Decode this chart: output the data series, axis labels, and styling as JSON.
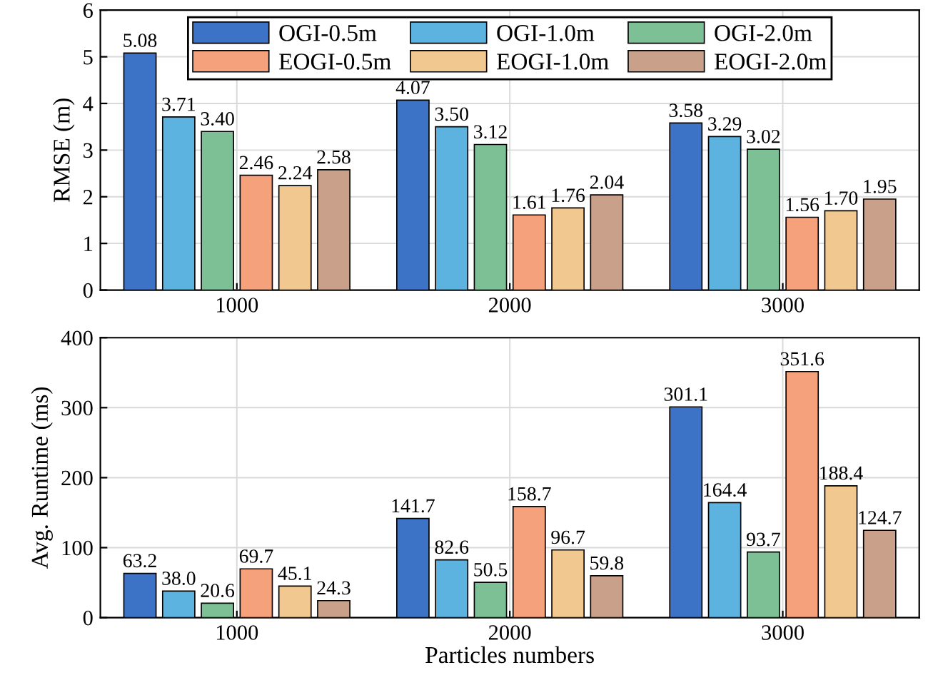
{
  "chart_data": [
    {
      "type": "bar",
      "ylabel": "RMSE (m)",
      "categories": [
        "1000",
        "2000",
        "3000"
      ],
      "ylim": [
        0,
        6
      ],
      "yticks": [
        0,
        1,
        2,
        3,
        4,
        5,
        6
      ],
      "grid": true,
      "legend": "top",
      "series": [
        {
          "name": "OGI-0.5m",
          "color": "#3d73c6",
          "values": [
            5.08,
            4.07,
            3.58
          ],
          "value_labels": [
            "5.08",
            "4.07",
            "3.58"
          ]
        },
        {
          "name": "OGI-1.0m",
          "color": "#5cb3e0",
          "values": [
            3.71,
            3.5,
            3.29
          ],
          "value_labels": [
            "3.71",
            "3.50",
            "3.29"
          ]
        },
        {
          "name": "OGI-2.0m",
          "color": "#7dc095",
          "values": [
            3.4,
            3.12,
            3.02
          ],
          "value_labels": [
            "3.40",
            "3.12",
            "3.02"
          ]
        },
        {
          "name": "EOGI-0.5m",
          "color": "#f4a17c",
          "values": [
            2.46,
            1.61,
            1.56
          ],
          "value_labels": [
            "2.46",
            "1.61",
            "1.56"
          ]
        },
        {
          "name": "EOGI-1.0m",
          "color": "#f1c88f",
          "values": [
            2.24,
            1.76,
            1.7
          ],
          "value_labels": [
            "2.24",
            "1.76",
            "1.70"
          ]
        },
        {
          "name": "EOGI-2.0m",
          "color": "#c9a08a",
          "values": [
            2.58,
            2.04,
            1.95
          ],
          "value_labels": [
            "2.58",
            "2.04",
            "1.95"
          ]
        }
      ]
    },
    {
      "type": "bar",
      "ylabel": "Avg. Runtime (ms)",
      "xlabel": "Particles numbers",
      "categories": [
        "1000",
        "2000",
        "3000"
      ],
      "ylim": [
        0,
        400
      ],
      "yticks": [
        0,
        100,
        200,
        300,
        400
      ],
      "grid": true,
      "series": [
        {
          "color": "#3d73c6",
          "values": [
            63.2,
            141.7,
            301.1
          ],
          "value_labels": [
            "63.2",
            "141.7",
            "301.1"
          ]
        },
        {
          "color": "#5cb3e0",
          "values": [
            38.0,
            82.6,
            164.4
          ],
          "value_labels": [
            "38.0",
            "82.6",
            "164.4"
          ]
        },
        {
          "color": "#7dc095",
          "values": [
            20.6,
            50.5,
            93.7
          ],
          "value_labels": [
            "20.6",
            "50.5",
            "93.7"
          ]
        },
        {
          "color": "#f4a17c",
          "values": [
            69.7,
            158.7,
            351.6
          ],
          "value_labels": [
            "69.7",
            "158.7",
            "351.6"
          ]
        },
        {
          "color": "#f1c88f",
          "values": [
            45.1,
            96.7,
            188.4
          ],
          "value_labels": [
            "45.1",
            "96.7",
            "188.4"
          ]
        },
        {
          "color": "#c9a08a",
          "values": [
            24.3,
            59.8,
            124.7
          ],
          "value_labels": [
            "24.3",
            "59.8",
            "124.7"
          ]
        }
      ]
    }
  ]
}
